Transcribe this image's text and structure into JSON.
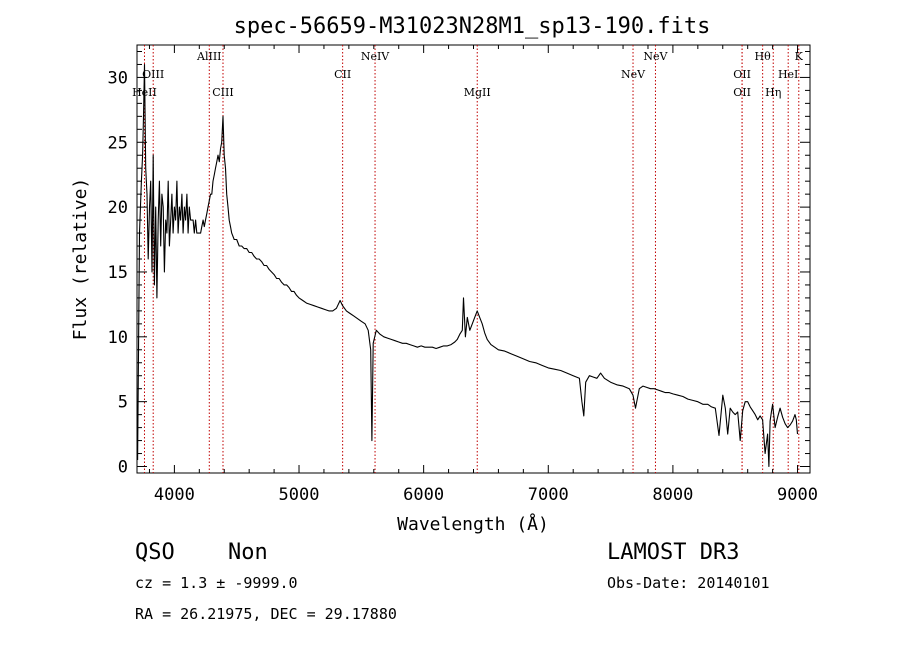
{
  "chart_data": {
    "type": "line",
    "title": "spec-56659-M31023N28M1_sp13-190.fits",
    "xlabel": "Wavelength (Å)",
    "ylabel": "Flux (relative)",
    "xlim": [
      3700,
      9100
    ],
    "ylim": [
      -0.5,
      32.5
    ],
    "x_ticks": [
      4000,
      5000,
      6000,
      7000,
      8000,
      9000
    ],
    "y_ticks": [
      0,
      5,
      10,
      15,
      20,
      25,
      30
    ],
    "grid": false,
    "lines": [
      {
        "label": "HeII",
        "wavelength": 3760,
        "label_row": 2
      },
      {
        "label": "OIII",
        "wavelength": 3830,
        "label_row": 1
      },
      {
        "label": "AlIII",
        "wavelength": 4280,
        "label_row": 0
      },
      {
        "label": "CIII",
        "wavelength": 4390,
        "label_row": 2
      },
      {
        "label": "CII",
        "wavelength": 5350,
        "label_row": 1
      },
      {
        "label": "NeIV",
        "wavelength": 5610,
        "label_row": 0
      },
      {
        "label": "MgII",
        "wavelength": 6430,
        "label_row": 2
      },
      {
        "label": "NeV",
        "wavelength": 7680,
        "label_row": 1
      },
      {
        "label": "NeV",
        "wavelength": 7860,
        "label_row": 0
      },
      {
        "label": "OII",
        "wavelength": 8555,
        "label_row": 1
      },
      {
        "label": "OII",
        "wavelength": 8555,
        "label_row": 2
      },
      {
        "label": "Hθ",
        "wavelength": 8720,
        "label_row": 0
      },
      {
        "label": "Hη",
        "wavelength": 8805,
        "label_row": 2
      },
      {
        "label": "HeI",
        "wavelength": 8925,
        "label_row": 1
      },
      {
        "label": "K",
        "wavelength": 9010,
        "label_row": 0
      }
    ],
    "series": [
      {
        "name": "spectrum",
        "x": [
          3705,
          3720,
          3735,
          3745,
          3752,
          3760,
          3770,
          3780,
          3790,
          3800,
          3810,
          3820,
          3830,
          3840,
          3850,
          3860,
          3870,
          3880,
          3890,
          3900,
          3910,
          3920,
          3930,
          3940,
          3950,
          3960,
          3970,
          3980,
          3990,
          4000,
          4010,
          4020,
          4030,
          4040,
          4050,
          4060,
          4070,
          4080,
          4090,
          4100,
          4110,
          4120,
          4130,
          4140,
          4150,
          4160,
          4170,
          4180,
          4190,
          4200,
          4210,
          4220,
          4230,
          4240,
          4250,
          4260,
          4270,
          4280,
          4290,
          4300,
          4310,
          4320,
          4330,
          4340,
          4350,
          4360,
          4370,
          4380,
          4390,
          4400,
          4410,
          4420,
          4430,
          4440,
          4450,
          4460,
          4480,
          4500,
          4520,
          4540,
          4560,
          4580,
          4600,
          4620,
          4640,
          4660,
          4680,
          4700,
          4720,
          4740,
          4760,
          4780,
          4800,
          4820,
          4840,
          4860,
          4880,
          4900,
          4920,
          4940,
          4960,
          4980,
          5000,
          5030,
          5060,
          5090,
          5120,
          5150,
          5180,
          5210,
          5240,
          5270,
          5300,
          5330,
          5350,
          5380,
          5410,
          5440,
          5470,
          5500,
          5530,
          5555,
          5575,
          5585,
          5595,
          5620,
          5650,
          5680,
          5710,
          5740,
          5770,
          5800,
          5830,
          5860,
          5890,
          5920,
          5950,
          5980,
          6010,
          6040,
          6070,
          6100,
          6130,
          6160,
          6190,
          6220,
          6250,
          6270,
          6290,
          6310,
          6320,
          6335,
          6350,
          6370,
          6390,
          6410,
          6430,
          6450,
          6470,
          6490,
          6510,
          6540,
          6570,
          6600,
          6650,
          6700,
          6750,
          6800,
          6850,
          6900,
          6950,
          7000,
          7050,
          7100,
          7150,
          7200,
          7250,
          7270,
          7285,
          7300,
          7330,
          7360,
          7390,
          7420,
          7450,
          7500,
          7550,
          7600,
          7650,
          7680,
          7700,
          7730,
          7760,
          7790,
          7820,
          7850,
          7880,
          7910,
          7940,
          7970,
          8000,
          8040,
          8080,
          8120,
          8160,
          8200,
          8240,
          8280,
          8310,
          8340,
          8370,
          8400,
          8420,
          8440,
          8460,
          8480,
          8500,
          8520,
          8540,
          8560,
          8580,
          8600,
          8620,
          8640,
          8660,
          8680,
          8700,
          8720,
          8740,
          8760,
          8770,
          8780,
          8790,
          8800,
          8820,
          8840,
          8860,
          8880,
          8900,
          8920,
          8940,
          8960,
          8980,
          8990,
          9000
        ],
        "y": [
          0.5,
          18,
          22,
          24,
          27,
          31,
          23,
          21,
          16,
          20,
          22,
          15,
          24,
          14,
          20,
          13,
          19,
          22,
          17,
          21,
          20,
          15,
          19,
          18,
          22,
          17,
          19,
          21,
          18,
          20,
          19,
          22,
          18,
          20,
          19,
          21,
          18,
          20,
          19,
          21,
          18,
          20,
          19,
          19,
          19,
          18,
          19,
          18,
          18,
          18,
          18,
          18.5,
          19,
          18.5,
          19,
          19.5,
          20,
          20.5,
          21,
          21,
          22,
          22.5,
          23,
          23.5,
          24,
          23.5,
          24.5,
          25,
          27,
          24,
          23,
          21,
          20,
          19,
          18.5,
          18,
          17.5,
          17.5,
          17,
          17,
          16.8,
          16.8,
          16.5,
          16.5,
          16.2,
          16,
          16,
          15.8,
          15.5,
          15.5,
          15.2,
          15,
          14.8,
          14.5,
          14.5,
          14.2,
          14,
          14,
          13.8,
          13.5,
          13.5,
          13.2,
          13,
          12.8,
          12.6,
          12.5,
          12.4,
          12.3,
          12.2,
          12.1,
          12,
          12,
          12.2,
          12.8,
          12.4,
          12,
          11.8,
          11.6,
          11.4,
          11.2,
          11,
          10.5,
          9,
          2,
          9.5,
          10.5,
          10.2,
          10,
          9.9,
          9.8,
          9.7,
          9.6,
          9.5,
          9.5,
          9.4,
          9.3,
          9.2,
          9.3,
          9.2,
          9.2,
          9.2,
          9.1,
          9.2,
          9.3,
          9.3,
          9.4,
          9.6,
          9.8,
          10.2,
          10.5,
          13,
          10,
          11.5,
          10.5,
          11,
          11.5,
          12,
          11.5,
          11,
          10.3,
          9.8,
          9.4,
          9.2,
          9,
          8.9,
          8.7,
          8.5,
          8.3,
          8.1,
          8,
          7.8,
          7.6,
          7.5,
          7.4,
          7.2,
          7,
          6.8,
          5,
          3.9,
          6.5,
          7,
          6.9,
          6.8,
          7.2,
          6.8,
          6.5,
          6.3,
          6.2,
          6,
          5.5,
          4.5,
          6,
          6.2,
          6.1,
          6,
          6,
          5.9,
          5.8,
          5.7,
          5.7,
          5.6,
          5.5,
          5.4,
          5.2,
          5.1,
          5,
          4.8,
          4.8,
          4.6,
          4.5,
          2.4,
          5.5,
          4.5,
          2.5,
          4.5,
          4.2,
          4,
          4.2,
          2,
          4.3,
          5,
          5,
          4.6,
          4.3,
          4,
          3.6,
          3.9,
          3.6,
          1,
          2.5,
          0,
          3.5,
          4.2,
          4.8,
          3,
          3.8,
          4.5,
          3.8,
          3.3,
          3,
          3.2,
          3.5,
          4,
          3.6,
          2.5
        ]
      }
    ]
  },
  "footer": {
    "class_label": "QSO",
    "subclass_label": "Non",
    "survey": "LAMOST DR3",
    "cz_text": "cz = 1.3 ± -9999.0",
    "obs_date_text": "Obs-Date: 20140101",
    "coords_text": "RA =  26.21975, DEC =  29.17880"
  }
}
